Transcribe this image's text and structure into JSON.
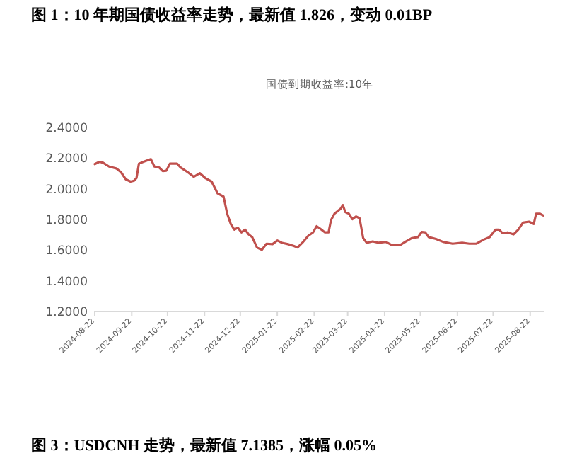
{
  "chart_data": {
    "type": "line",
    "title": "图 1：10 年期国债收益率走势，最新值 1.826，变动 0.01BP",
    "subtitle": "国债到期收益率:10年",
    "annotations": [
      "图 3：USDCNH 走势，最新值 7.1385，涨幅 0.05%"
    ],
    "x": [
      "2024-08-22",
      "2024-08-26",
      "2024-08-29",
      "2024-09-03",
      "2024-09-09",
      "2024-09-13",
      "2024-09-17",
      "2024-09-21",
      "2024-09-24",
      "2024-09-26",
      "2024-09-28",
      "2024-10-03",
      "2024-10-08",
      "2024-10-11",
      "2024-10-15",
      "2024-10-18",
      "2024-10-21",
      "2024-10-24",
      "2024-10-30",
      "2024-11-02",
      "2024-11-08",
      "2024-11-13",
      "2024-11-18",
      "2024-11-23",
      "2024-11-28",
      "2024-12-03",
      "2024-12-08",
      "2024-12-11",
      "2024-12-14",
      "2024-12-17",
      "2024-12-20",
      "2024-12-23",
      "2024-12-26",
      "2024-12-29",
      "2025-01-01",
      "2025-01-05",
      "2025-01-09",
      "2025-01-13",
      "2025-01-18",
      "2025-01-22",
      "2025-01-26",
      "2025-01-31",
      "2025-02-05",
      "2025-02-08",
      "2025-02-12",
      "2025-02-17",
      "2025-02-21",
      "2025-02-24",
      "2025-02-27",
      "2025-03-03",
      "2025-03-06",
      "2025-03-08",
      "2025-03-11",
      "2025-03-14",
      "2025-03-16",
      "2025-03-18",
      "2025-03-20",
      "2025-03-23",
      "2025-03-26",
      "2025-03-29",
      "2025-04-01",
      "2025-04-04",
      "2025-04-07",
      "2025-04-12",
      "2025-04-17",
      "2025-04-23",
      "2025-04-28",
      "2025-05-05",
      "2025-05-10",
      "2025-05-15",
      "2025-05-20",
      "2025-05-23",
      "2025-05-26",
      "2025-05-29",
      "2025-06-04",
      "2025-06-10",
      "2025-06-18",
      "2025-06-26",
      "2025-07-02",
      "2025-07-08",
      "2025-07-14",
      "2025-07-19",
      "2025-07-24",
      "2025-07-27",
      "2025-07-30",
      "2025-08-03",
      "2025-08-08",
      "2025-08-12",
      "2025-08-16",
      "2025-08-21",
      "2025-08-25",
      "2025-08-27",
      "2025-08-30",
      "2025-09-02"
    ],
    "series": [
      {
        "color": "#c0504d",
        "values": [
          2.161,
          2.176,
          2.17,
          2.145,
          2.133,
          2.108,
          2.062,
          2.047,
          2.053,
          2.07,
          2.164,
          2.18,
          2.194,
          2.145,
          2.139,
          2.115,
          2.118,
          2.164,
          2.164,
          2.139,
          2.108,
          2.078,
          2.102,
          2.068,
          2.047,
          1.97,
          1.949,
          1.838,
          1.771,
          1.734,
          1.746,
          1.716,
          1.734,
          1.703,
          1.685,
          1.617,
          1.602,
          1.642,
          1.639,
          1.663,
          1.648,
          1.639,
          1.627,
          1.617,
          1.648,
          1.694,
          1.716,
          1.756,
          1.74,
          1.716,
          1.716,
          1.795,
          1.838,
          1.857,
          1.869,
          1.894,
          1.848,
          1.838,
          1.802,
          1.82,
          1.808,
          1.679,
          1.648,
          1.657,
          1.648,
          1.654,
          1.633,
          1.633,
          1.657,
          1.679,
          1.685,
          1.719,
          1.716,
          1.685,
          1.673,
          1.654,
          1.642,
          1.648,
          1.642,
          1.642,
          1.669,
          1.685,
          1.734,
          1.734,
          1.71,
          1.716,
          1.703,
          1.734,
          1.78,
          1.786,
          1.771,
          1.838,
          1.838,
          1.826
        ]
      }
    ],
    "xlim": [
      "2024-08-22",
      "2025-09-03"
    ],
    "xticks": [
      "2024-08-22",
      "2024-09-22",
      "2024-10-22",
      "2024-11-22",
      "2024-12-22",
      "2025-01-22",
      "2025-02-22",
      "2025-03-22",
      "2025-04-22",
      "2025-05-22",
      "2025-06-22",
      "2025-07-22",
      "2025-08-22"
    ],
    "ylim": [
      1.2,
      2.4
    ],
    "yticks": [
      {
        "value": 1.2,
        "label": "1.2000"
      },
      {
        "value": 1.4,
        "label": "1.4000"
      },
      {
        "value": 1.6,
        "label": "1.6000"
      },
      {
        "value": 1.8,
        "label": "1.8000"
      },
      {
        "value": 2.0,
        "label": "2.0000"
      },
      {
        "value": 2.2,
        "label": "2.2000"
      },
      {
        "value": 2.4,
        "label": "2.4000"
      }
    ]
  }
}
